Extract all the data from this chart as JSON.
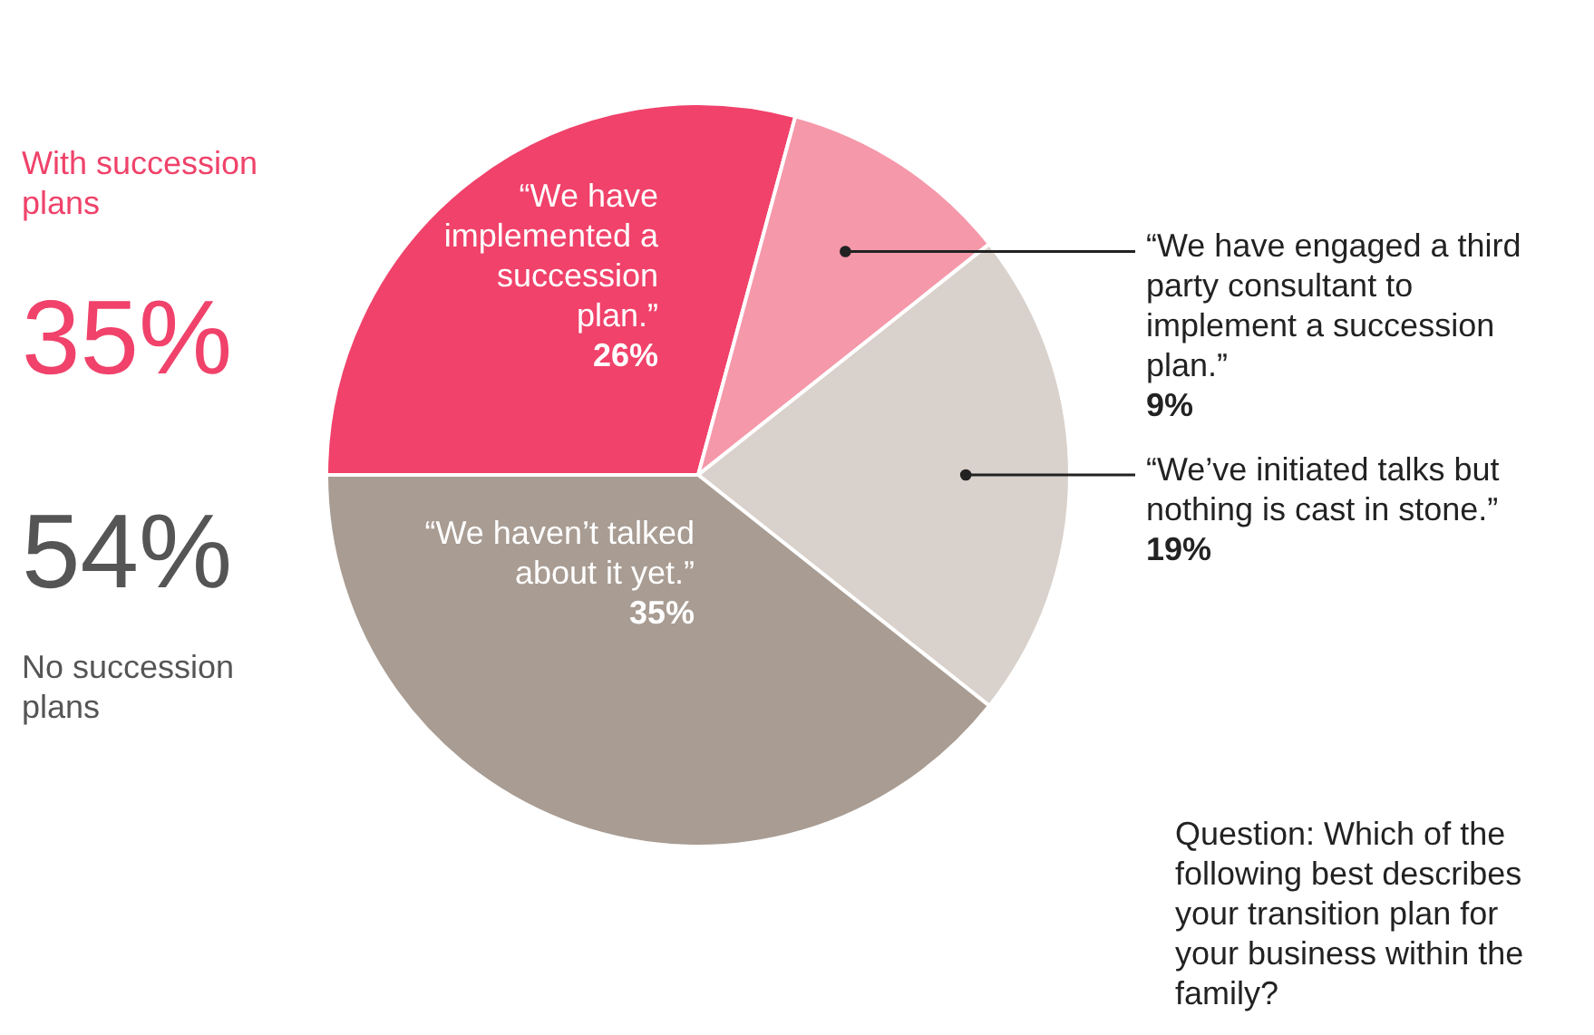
{
  "chart_data": {
    "type": "pie",
    "categories": [
      "“We have implemented a succession plan.”",
      "“We have engaged a third party consultant to implement a succession plan.”",
      "“We’ve initiated talks but nothing is cast in stone.”",
      "“We haven’t talked about it yet.”"
    ],
    "values": [
      26,
      9,
      19,
      35
    ],
    "colors": [
      "#f0426a",
      "#f598aa",
      "#d9d1cb",
      "#a89c93"
    ],
    "value_labels": [
      "26%",
      "9%",
      "19%",
      "35%"
    ],
    "annotations": [
      "With succession plans",
      "35%",
      "54%",
      "No succession plans",
      "Question: Which of the following best describes your transition plan for your business within the family?"
    ]
  }
}
